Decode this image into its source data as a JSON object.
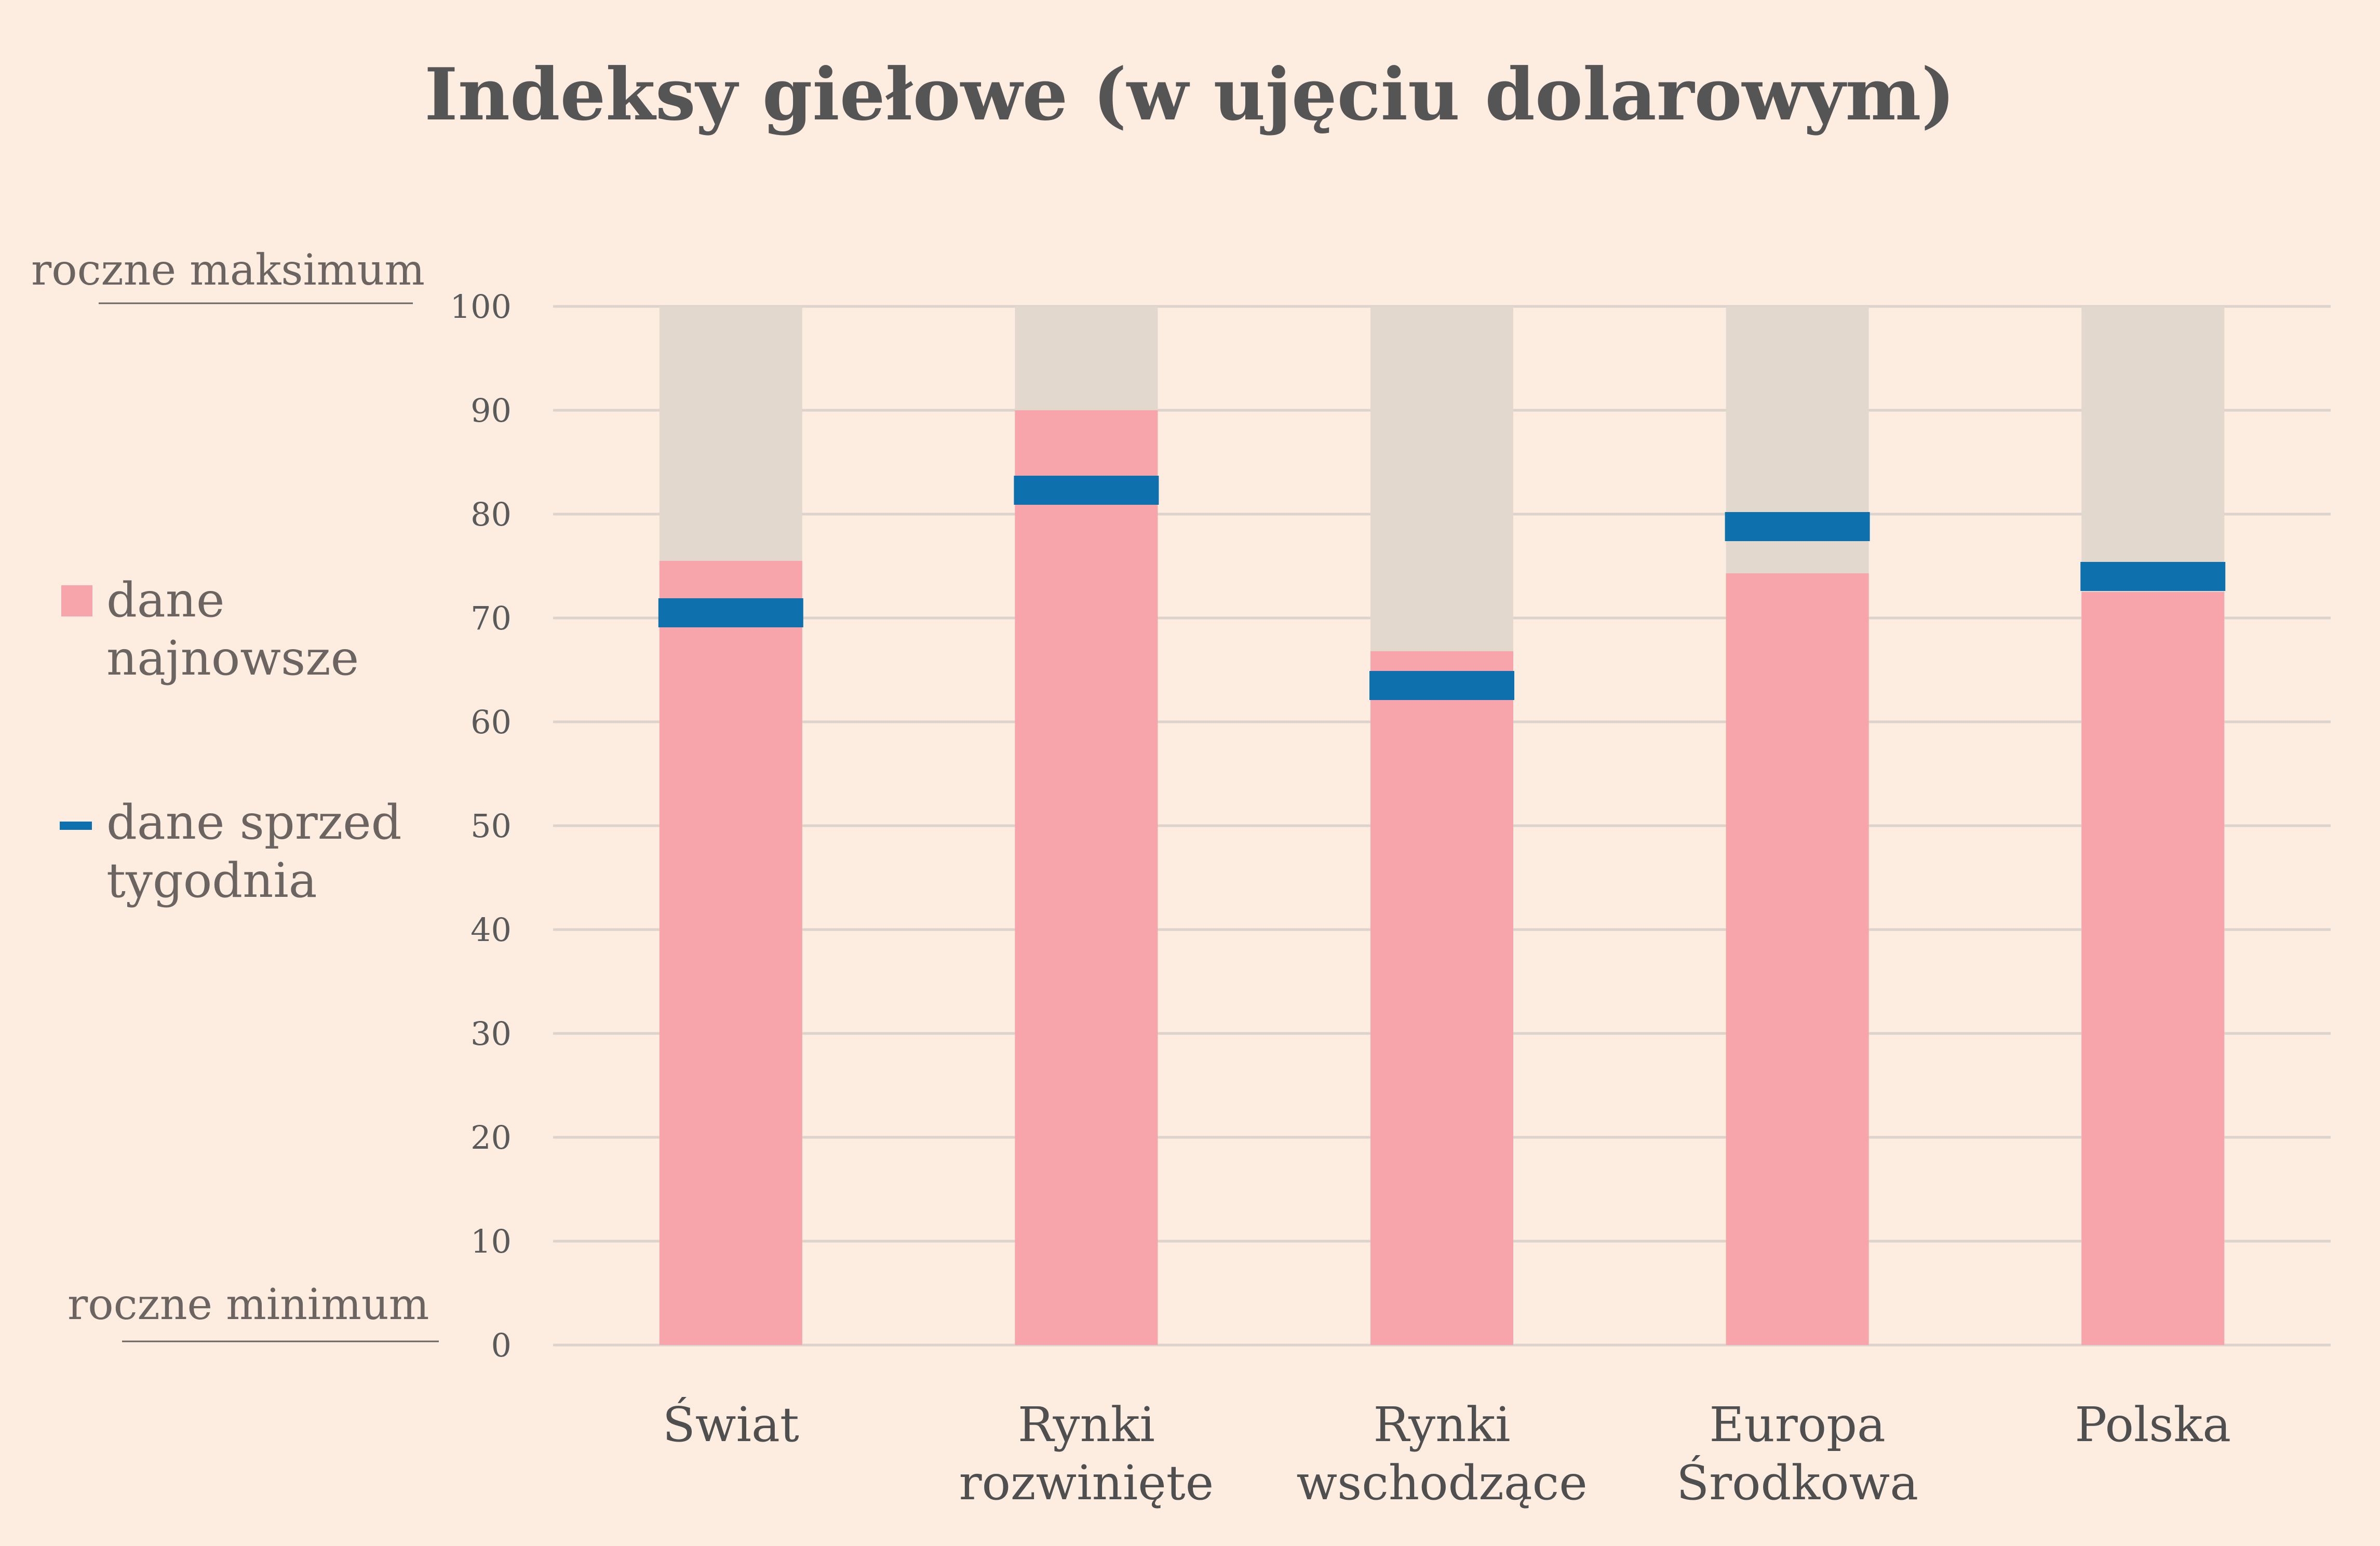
{
  "chart_data": {
    "type": "bar",
    "title": "Indeksy giełowe (w ujęciu dolarowym)",
    "categories": [
      "Świat",
      "Rynki rozwinięte",
      "Rynki wschodzące",
      "Europa Środkowa",
      "Polska"
    ],
    "category_lines": [
      [
        "Świat"
      ],
      [
        "Rynki",
        "rozwinięte"
      ],
      [
        "Rynki",
        "wschodzące"
      ],
      [
        "Europa",
        "Środkowa"
      ],
      [
        "Polska"
      ]
    ],
    "series": [
      {
        "name": "dane najnowsze",
        "values": [
          75.5,
          90,
          66.8,
          74.3,
          72.5
        ],
        "color": "#f7a5aa"
      },
      {
        "name": "dane sprzed tygodnia",
        "values": [
          70.5,
          82.3,
          63.5,
          78.8,
          74
        ],
        "color": "#0e71ae"
      }
    ],
    "legend_lines": [
      [
        "dane",
        "najnowsze"
      ],
      [
        "dane sprzed",
        "tygodnia"
      ]
    ],
    "range_max": 100,
    "range_color": "#e3d8ce",
    "ylim": [
      0,
      100
    ],
    "yticks": [
      0,
      10,
      20,
      30,
      40,
      50,
      60,
      70,
      80,
      90,
      100
    ],
    "ymax_label": "roczne maksimum",
    "ymin_label": "roczne minimum",
    "grid": true,
    "legend_position": "left"
  }
}
